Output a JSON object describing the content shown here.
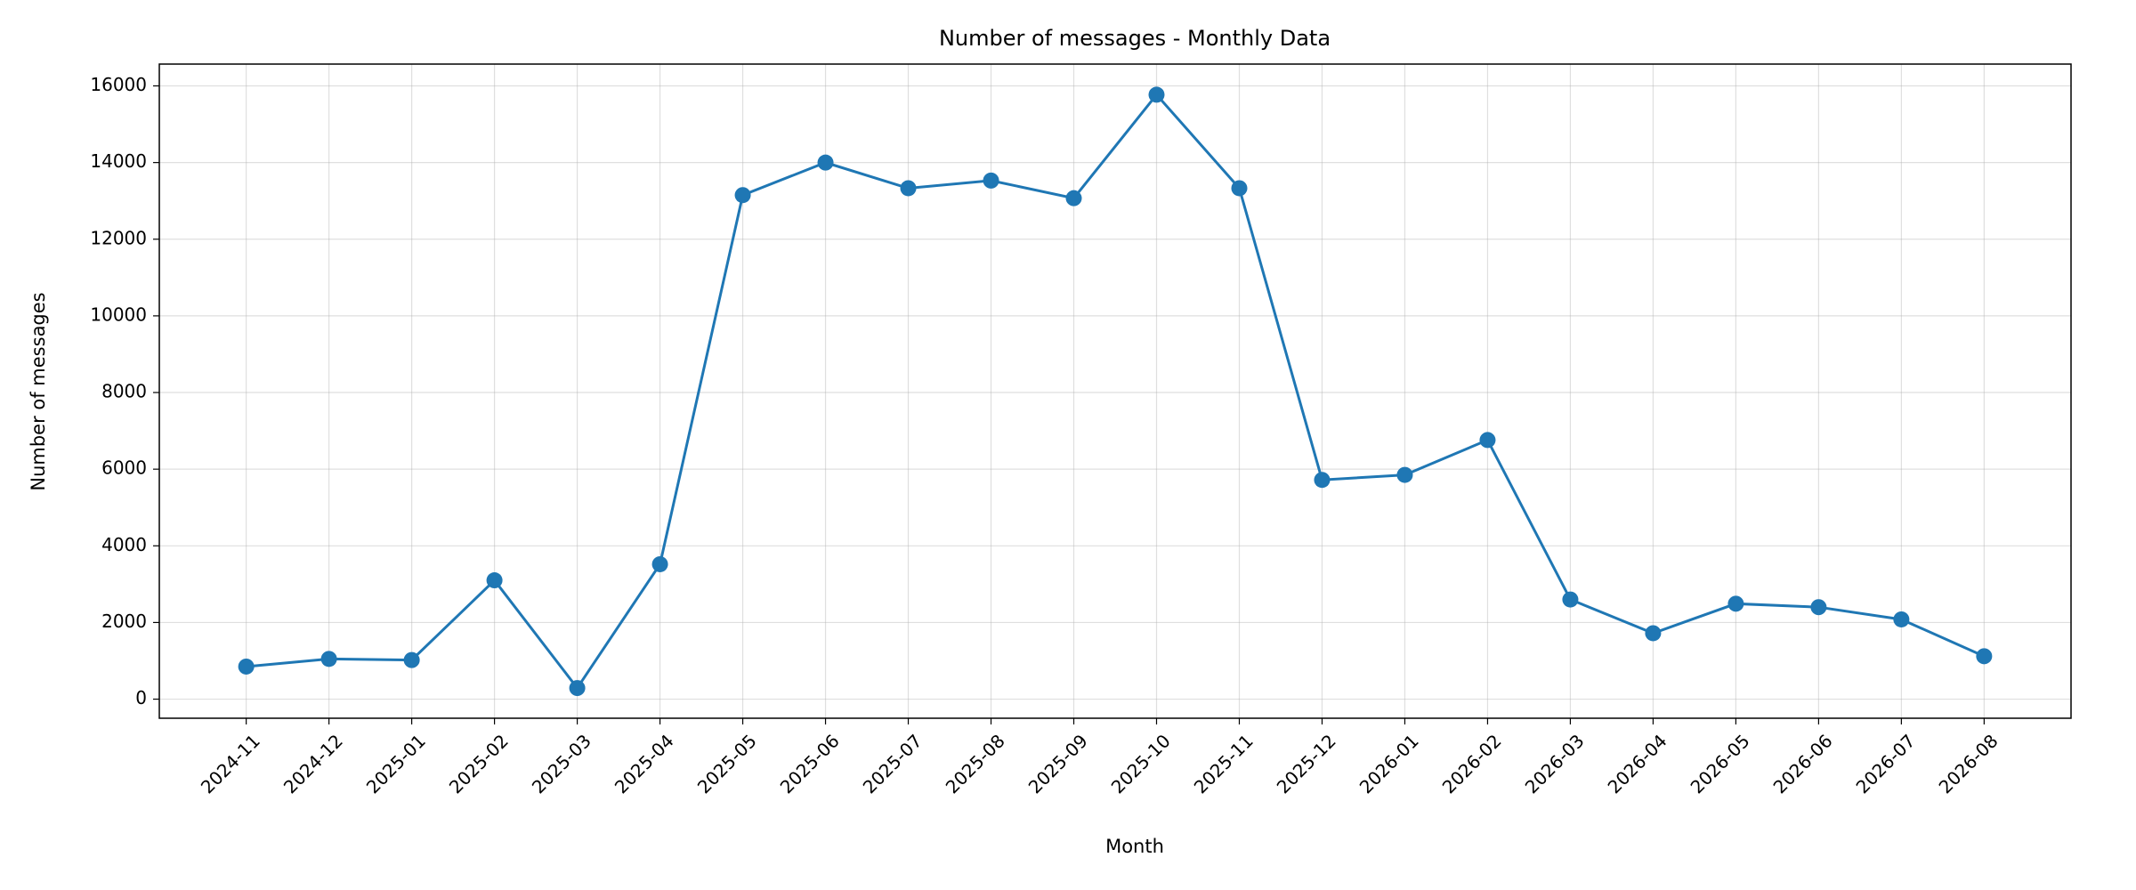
{
  "chart_data": {
    "type": "line",
    "title": "Number of messages - Monthly Data",
    "xlabel": "Month",
    "ylabel": "Number of messages",
    "categories": [
      "2024-11",
      "2024-12",
      "2025-01",
      "2025-02",
      "2025-03",
      "2025-04",
      "2025-05",
      "2025-06",
      "2025-07",
      "2025-08",
      "2025-09",
      "2025-10",
      "2025-11",
      "2025-12",
      "2026-01",
      "2026-02",
      "2026-03",
      "2026-04",
      "2026-05",
      "2026-06",
      "2026-07",
      "2026-08"
    ],
    "values": [
      850,
      1050,
      1020,
      3100,
      290,
      3520,
      13150,
      14000,
      13330,
      13530,
      13070,
      15770,
      13330,
      5720,
      5850,
      6760,
      2600,
      1720,
      2490,
      2400,
      2080,
      1120
    ],
    "color": "#1f77b4",
    "ylim": [
      -498,
      16569
    ],
    "yticks": [
      0,
      2000,
      4000,
      6000,
      8000,
      10000,
      12000,
      14000,
      16000
    ],
    "grid": true
  }
}
